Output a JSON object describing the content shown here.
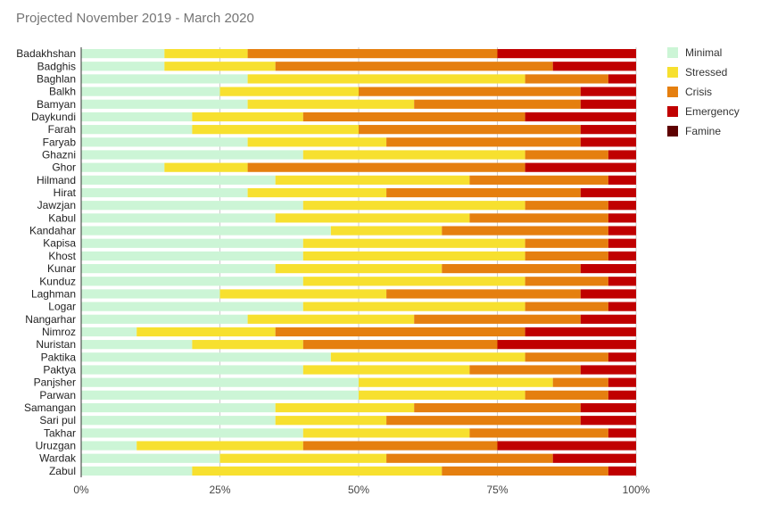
{
  "chart_data": {
    "type": "bar",
    "orientation": "horizontal",
    "stacked": "percent",
    "title": "Projected November 2019 - March 2020",
    "xlim": [
      0,
      100
    ],
    "x_ticks": [
      "0%",
      "25%",
      "50%",
      "75%",
      "100%"
    ],
    "legend_position": "right",
    "grid": true,
    "categories": [
      "Badakhshan",
      "Badghis",
      "Baghlan",
      "Balkh",
      "Bamyan",
      "Daykundi",
      "Farah",
      "Faryab",
      "Ghazni",
      "Ghor",
      "Hilmand",
      "Hirat",
      "Jawzjan",
      "Kabul",
      "Kandahar",
      "Kapisa",
      "Khost",
      "Kunar",
      "Kunduz",
      "Laghman",
      "Logar",
      "Nangarhar",
      "Nimroz",
      "Nuristan",
      "Paktika",
      "Paktya",
      "Panjsher",
      "Parwan",
      "Samangan",
      "Sari pul",
      "Takhar",
      "Uruzgan",
      "Wardak",
      "Zabul"
    ],
    "series": [
      {
        "name": "Minimal",
        "color": "#ccf5d6",
        "values": [
          15,
          15,
          30,
          25,
          30,
          20,
          20,
          30,
          40,
          15,
          35,
          30,
          40,
          35,
          45,
          40,
          40,
          35,
          40,
          25,
          40,
          30,
          10,
          20,
          45,
          40,
          50,
          50,
          35,
          35,
          40,
          10,
          25,
          20
        ]
      },
      {
        "name": "Stressed",
        "color": "#f7e02f",
        "values": [
          15,
          20,
          50,
          25,
          30,
          20,
          30,
          25,
          40,
          15,
          35,
          25,
          40,
          35,
          20,
          40,
          40,
          30,
          40,
          30,
          40,
          30,
          25,
          20,
          35,
          30,
          35,
          30,
          25,
          20,
          30,
          30,
          30,
          45
        ]
      },
      {
        "name": "Crisis",
        "color": "#e57f0f",
        "values": [
          45,
          50,
          15,
          40,
          30,
          40,
          40,
          35,
          15,
          50,
          25,
          35,
          15,
          25,
          30,
          15,
          15,
          25,
          15,
          35,
          15,
          30,
          45,
          35,
          15,
          20,
          10,
          15,
          30,
          35,
          25,
          35,
          30,
          30
        ]
      },
      {
        "name": "Emergency",
        "color": "#c00000",
        "values": [
          25,
          15,
          5,
          10,
          10,
          20,
          10,
          10,
          5,
          20,
          5,
          10,
          5,
          5,
          5,
          5,
          5,
          10,
          5,
          10,
          5,
          10,
          20,
          25,
          5,
          10,
          5,
          5,
          10,
          10,
          5,
          25,
          15,
          5
        ]
      },
      {
        "name": "Famine",
        "color": "#5e0000",
        "values": [
          0,
          0,
          0,
          0,
          0,
          0,
          0,
          0,
          0,
          0,
          0,
          0,
          0,
          0,
          0,
          0,
          0,
          0,
          0,
          0,
          0,
          0,
          0,
          0,
          0,
          0,
          0,
          0,
          0,
          0,
          0,
          0,
          0,
          0
        ]
      }
    ]
  }
}
